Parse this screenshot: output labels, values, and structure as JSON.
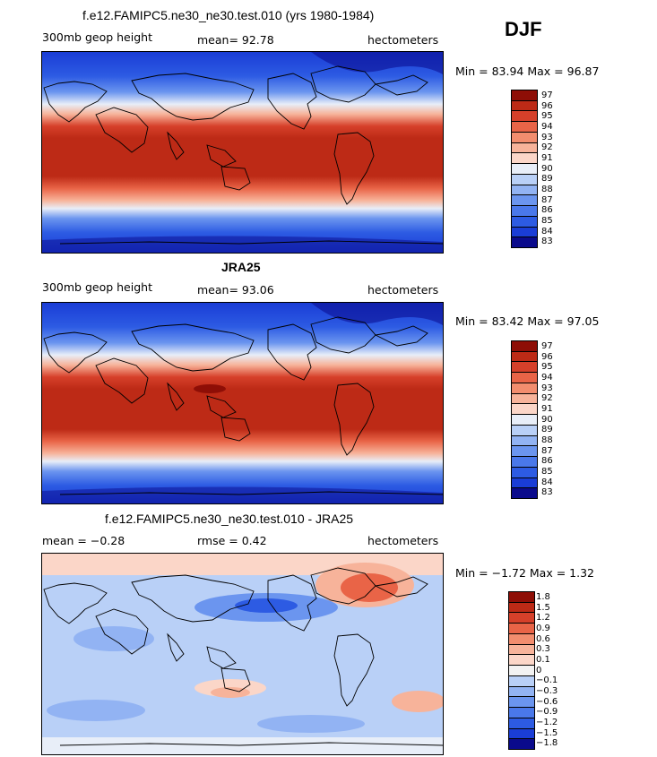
{
  "season": "DJF",
  "panels": [
    {
      "title": "f.e12.FAMIPC5.ne30_ne30.test.010 (yrs 1980-1984)",
      "left_label": "300mb geop height",
      "center_label": "mean=  92.78",
      "right_label": "hectometers",
      "minmax": "Min =  83.94 Max =  96.87",
      "colors": [
        "#0a0a8c",
        "#1a3dd6",
        "#2d5be3",
        "#4a78ea",
        "#6b95ef",
        "#92b3f3",
        "#b9d0f7",
        "#e8eef8",
        "#fbd6c8",
        "#f7b39a",
        "#f28d6e",
        "#e96447",
        "#d6402a",
        "#bd2a16",
        "#8e0e06"
      ],
      "levels": [
        "97",
        "96",
        "95",
        "94",
        "93",
        "92",
        "91",
        "90",
        "89",
        "88",
        "87",
        "86",
        "85",
        "84",
        "83"
      ]
    },
    {
      "title": "JRA25",
      "left_label": "300mb geop height",
      "center_label": "mean=  93.06",
      "right_label": "hectometers",
      "minmax": "Min =  83.42 Max =  97.05",
      "colors": [
        "#0a0a8c",
        "#1a3dd6",
        "#2d5be3",
        "#4a78ea",
        "#6b95ef",
        "#92b3f3",
        "#b9d0f7",
        "#e8eef8",
        "#fbd6c8",
        "#f7b39a",
        "#f28d6e",
        "#e96447",
        "#d6402a",
        "#bd2a16",
        "#8e0e06"
      ],
      "levels": [
        "97",
        "96",
        "95",
        "94",
        "93",
        "92",
        "91",
        "90",
        "89",
        "88",
        "87",
        "86",
        "85",
        "84",
        "83"
      ]
    },
    {
      "title": "f.e12.FAMIPC5.ne30_ne30.test.010 - JRA25",
      "left_label": "mean =  −0.28",
      "center_label": "rmse =    0.42",
      "right_label": "hectometers",
      "minmax": "Min =  −1.72 Max =    1.32",
      "colors": [
        "#0a0a8c",
        "#1a3dd6",
        "#2d5be3",
        "#4a78ea",
        "#6b95ef",
        "#92b3f3",
        "#b9d0f7",
        "#f2f2f2",
        "#fbd6c8",
        "#f7b39a",
        "#f28d6e",
        "#e96447",
        "#d6402a",
        "#bd2a16",
        "#8e0e06"
      ],
      "levels": [
        "1.8",
        "1.5",
        "1.2",
        "0.9",
        "0.6",
        "0.3",
        "0.1",
        "0",
        "−0.1",
        "−0.3",
        "−0.6",
        "−0.9",
        "−1.2",
        "−1.5",
        "−1.8"
      ]
    }
  ]
}
